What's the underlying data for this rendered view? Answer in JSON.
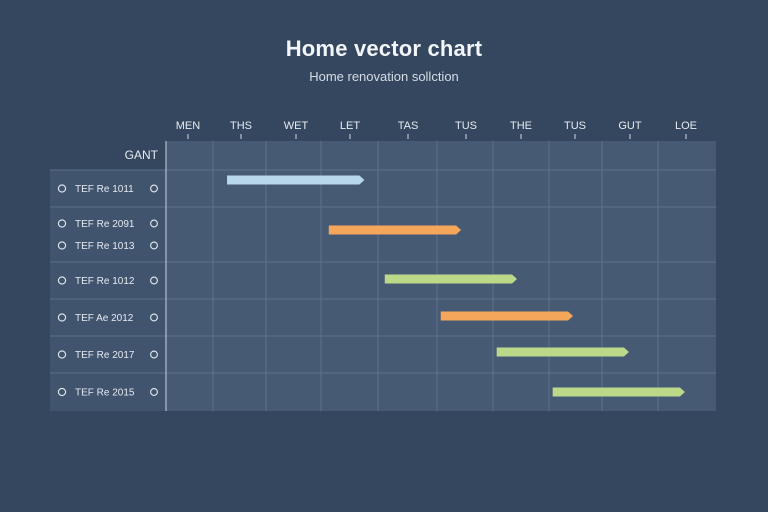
{
  "header": {
    "title": "Home vector chart",
    "subtitle": "Home renovation sollction"
  },
  "chart_data": {
    "type": "gantt",
    "title": "Home vector chart",
    "subtitle": "Home renovation sollction",
    "corner_label": "GANT",
    "columns": [
      "MEN",
      "THS",
      "WET",
      "LET",
      "TAS",
      "TUS",
      "THE",
      "TUS",
      "GUT",
      "LOE"
    ],
    "rows": [
      {
        "label": "TEF Re 1011"
      },
      {
        "label": "TEF Re 2091",
        "sublabel": "TEF Re 1013"
      },
      {
        "label": "TEF Re 1012"
      },
      {
        "label": "TEF Ae 2012"
      },
      {
        "label": "TEF Re 2017"
      },
      {
        "label": "TEF Re 2015"
      }
    ],
    "tasks": [
      {
        "row": 0,
        "start": 1.2,
        "end": 3.9,
        "color": "#b9d7ec"
      },
      {
        "row": 1,
        "start": 3.2,
        "end": 5.8,
        "color": "#f4a65a"
      },
      {
        "row": 2,
        "start": 4.3,
        "end": 6.9,
        "color": "#bcd98a"
      },
      {
        "row": 3,
        "start": 5.4,
        "end": 8.0,
        "color": "#f4a65a"
      },
      {
        "row": 4,
        "start": 6.5,
        "end": 9.1,
        "color": "#bcd98a"
      },
      {
        "row": 5,
        "start": 7.6,
        "end": 10.2,
        "color": "#bcd98a"
      }
    ],
    "grid": true,
    "colors": {
      "background": "#35475f",
      "grid_panel": "#475a74",
      "label_panel": "#41546e",
      "grid_line": "#5d718c"
    }
  }
}
